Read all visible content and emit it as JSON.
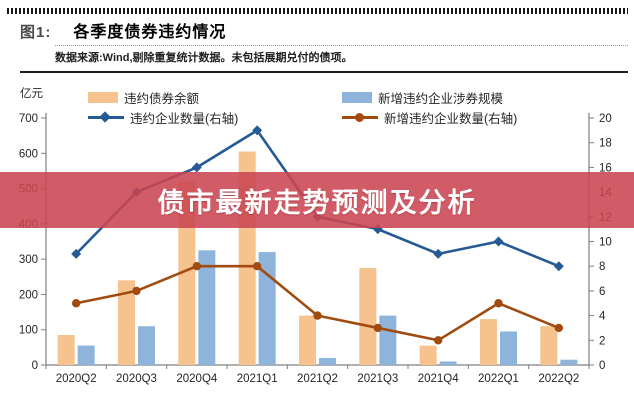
{
  "figure": {
    "label": "图1:",
    "title": "各季度债券违约情况",
    "source": "数据来源:Wind,剔除重复统计数据。未包括展期兑付的债项。"
  },
  "banner": {
    "text": "债市最新走势预测及分析",
    "bg_color": "#CB4652",
    "text_color": "#FFFFFF"
  },
  "chart_data": {
    "type": "bar",
    "subtype": "dual-axis bar + line",
    "categories": [
      "2020Q2",
      "2020Q3",
      "2020Q4",
      "2021Q1",
      "2021Q2",
      "2021Q3",
      "2021Q4",
      "2022Q1",
      "2022Q2"
    ],
    "series": [
      {
        "name": "违约债券余额",
        "type": "bar",
        "axis": "left",
        "color": "#F6C28E",
        "values": [
          85,
          240,
          520,
          605,
          140,
          275,
          55,
          130,
          110
        ]
      },
      {
        "name": "新增违约企业涉券规模",
        "type": "bar",
        "axis": "left",
        "color": "#8FB4DC",
        "values": [
          55,
          110,
          325,
          320,
          20,
          140,
          10,
          95,
          15
        ]
      },
      {
        "name": "违约企业数量(右轴)",
        "type": "line",
        "axis": "right",
        "marker": "diamond",
        "color": "#255A94",
        "values": [
          9,
          14,
          16,
          19,
          12,
          11,
          9,
          10,
          8
        ]
      },
      {
        "name": "新增违约企业数量(右轴)",
        "type": "line",
        "axis": "right",
        "marker": "circle",
        "color": "#A14B10",
        "values": [
          5,
          6,
          8,
          8,
          4,
          3,
          2,
          5,
          3
        ]
      }
    ],
    "left_axis": {
      "label": "亿元",
      "min": 0,
      "max": 700,
      "step": 100
    },
    "right_axis": {
      "label": "",
      "min": 0,
      "max": 20,
      "step": 2
    },
    "legend_position": "top",
    "grid": false,
    "axis_color": "#7f7f7f",
    "tick_label_color": "#262626"
  }
}
